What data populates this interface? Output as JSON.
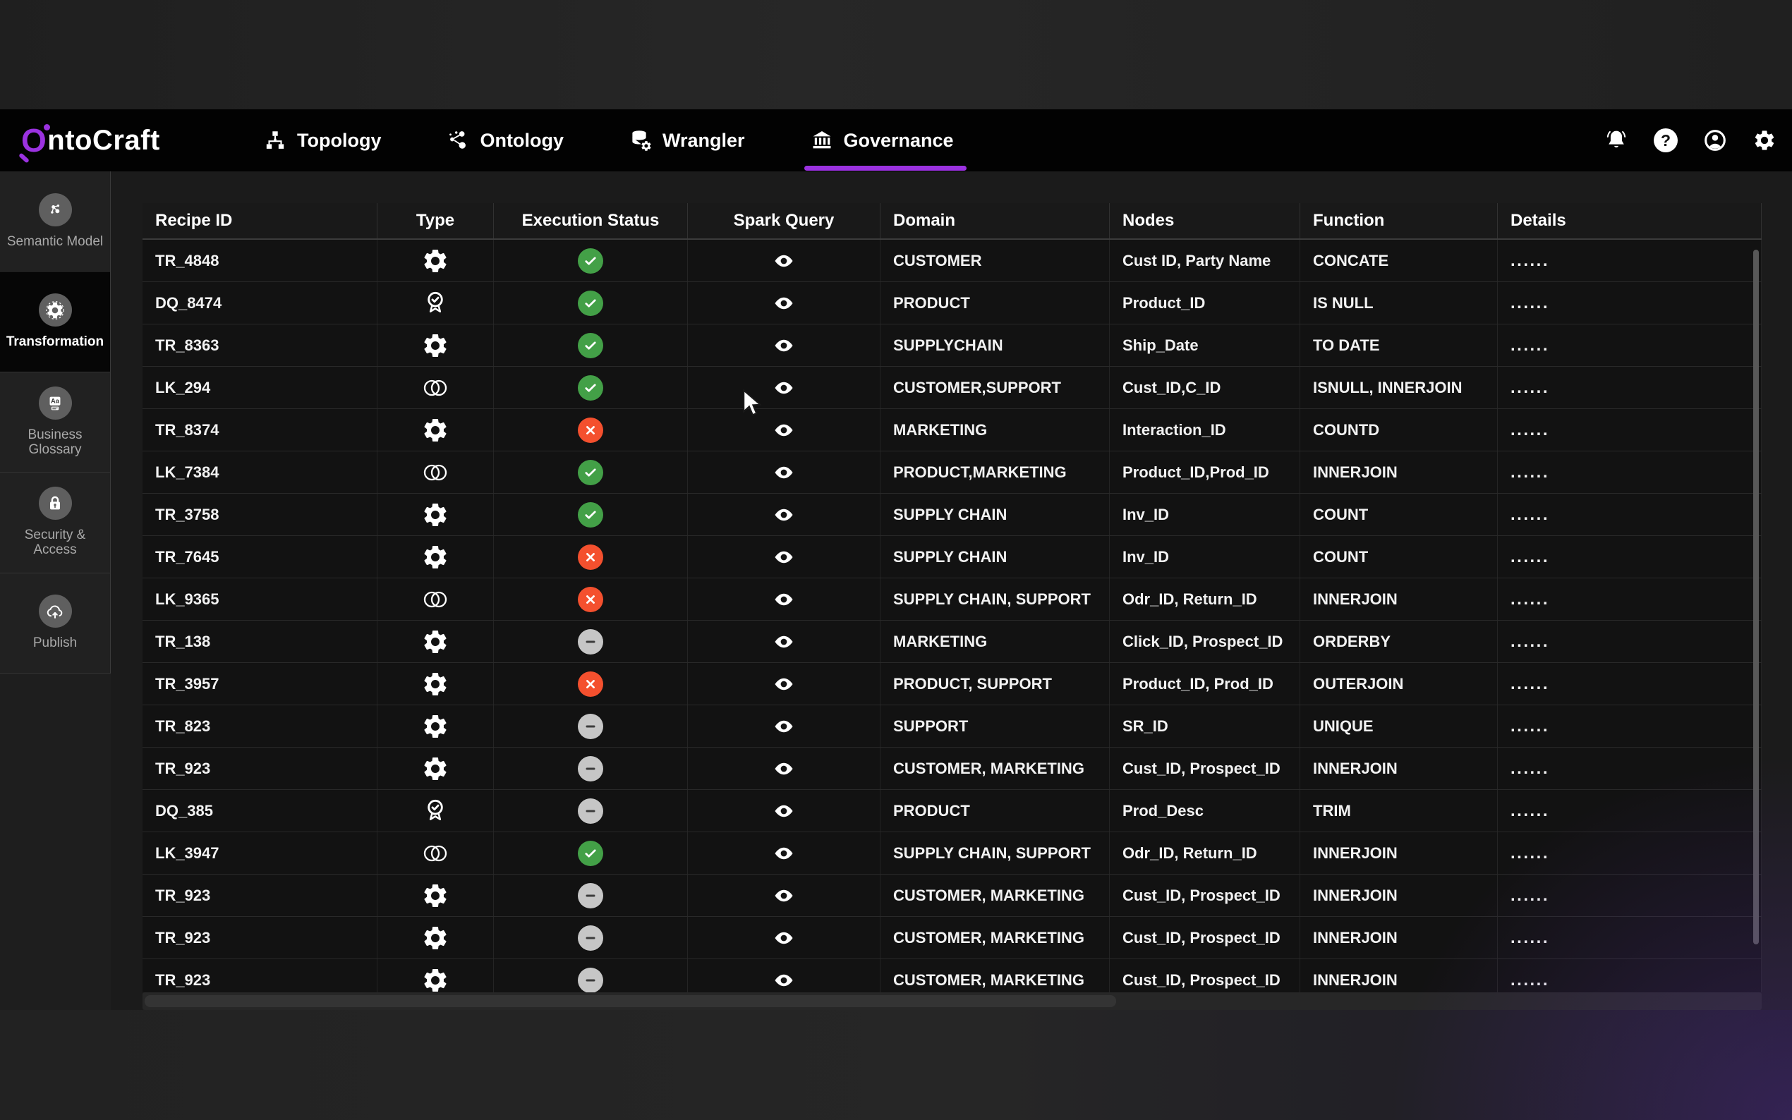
{
  "colors": {
    "accent_purple": "#9b32e0",
    "success_green": "#43a047",
    "error_red": "#f4502e",
    "pending_gray": "#c6c6c6"
  },
  "brand": {
    "prefix": "O",
    "rest": "ntoCraft"
  },
  "nav": {
    "tabs": [
      {
        "label": "Topology",
        "icon": "topology-icon",
        "active": false
      },
      {
        "label": "Ontology",
        "icon": "ontology-icon",
        "active": false
      },
      {
        "label": "Wrangler",
        "icon": "wrangler-icon",
        "active": false
      },
      {
        "label": "Governance",
        "icon": "governance-icon",
        "active": true
      }
    ],
    "actions": [
      {
        "name": "notifications",
        "icon": "bell-icon"
      },
      {
        "name": "help",
        "icon": "help-icon"
      },
      {
        "name": "account",
        "icon": "user-icon"
      },
      {
        "name": "settings",
        "icon": "gear-icon"
      }
    ]
  },
  "sidebar": {
    "items": [
      {
        "label": "Semantic Model",
        "icon": "semantic-model-icon",
        "active": false
      },
      {
        "label": "Transformation",
        "icon": "transformation-icon",
        "active": true
      },
      {
        "label": "Business Glossary",
        "icon": "business-glossary-icon",
        "active": false
      },
      {
        "label": "Security & Access",
        "icon": "security-access-icon",
        "active": false
      },
      {
        "label": "Publish",
        "icon": "publish-icon",
        "active": false
      }
    ]
  },
  "table": {
    "columns": [
      "Recipe ID",
      "Type",
      "Execution Status",
      "Spark Query",
      "Domain",
      "Nodes",
      "Function",
      "Details"
    ],
    "spark_query_icon": "eye-icon",
    "rows": [
      {
        "recipe_id": "TR_4848",
        "type": "transformation",
        "status": "success",
        "domain": "CUSTOMER",
        "nodes": "Cust ID, Party Name",
        "function": "CONCATE",
        "details": "......"
      },
      {
        "recipe_id": "DQ_8474",
        "type": "data-quality",
        "status": "success",
        "domain": "PRODUCT",
        "nodes": "Product_ID",
        "function": "IS NULL",
        "details": "......"
      },
      {
        "recipe_id": "TR_8363",
        "type": "transformation",
        "status": "success",
        "domain": "SUPPLYCHAIN",
        "nodes": "Ship_Date",
        "function": "TO DATE",
        "details": "......"
      },
      {
        "recipe_id": "LK_294",
        "type": "link",
        "status": "success",
        "domain": "CUSTOMER,SUPPORT",
        "nodes": "Cust_ID,C_ID",
        "function": "ISNULL, INNERJOIN",
        "details": "......"
      },
      {
        "recipe_id": "TR_8374",
        "type": "transformation",
        "status": "failed",
        "domain": "MARKETING",
        "nodes": "Interaction_ID",
        "function": "COUNTD",
        "details": "......"
      },
      {
        "recipe_id": "LK_7384",
        "type": "link",
        "status": "success",
        "domain": "PRODUCT,MARKETING",
        "nodes": "Product_ID,Prod_ID",
        "function": "INNERJOIN",
        "details": "......"
      },
      {
        "recipe_id": "TR_3758",
        "type": "transformation",
        "status": "success",
        "domain": "SUPPLY CHAIN",
        "nodes": "Inv_ID",
        "function": "COUNT",
        "details": "......"
      },
      {
        "recipe_id": "TR_7645",
        "type": "transformation",
        "status": "failed",
        "domain": "SUPPLY CHAIN",
        "nodes": "Inv_ID",
        "function": "COUNT",
        "details": "......"
      },
      {
        "recipe_id": "LK_9365",
        "type": "link",
        "status": "failed",
        "domain": "SUPPLY CHAIN, SUPPORT",
        "nodes": "Odr_ID, Return_ID",
        "function": "INNERJOIN",
        "details": "......"
      },
      {
        "recipe_id": "TR_138",
        "type": "transformation",
        "status": "pending",
        "domain": "MARKETING",
        "nodes": "Click_ID, Prospect_ID",
        "function": "ORDERBY",
        "details": "......"
      },
      {
        "recipe_id": "TR_3957",
        "type": "transformation",
        "status": "failed",
        "domain": "PRODUCT, SUPPORT",
        "nodes": "Product_ID, Prod_ID",
        "function": "OUTERJOIN",
        "details": "......"
      },
      {
        "recipe_id": "TR_823",
        "type": "transformation",
        "status": "pending",
        "domain": "SUPPORT",
        "nodes": "SR_ID",
        "function": "UNIQUE",
        "details": "......"
      },
      {
        "recipe_id": "TR_923",
        "type": "transformation",
        "status": "pending",
        "domain": "CUSTOMER, MARKETING",
        "nodes": "Cust_ID, Prospect_ID",
        "function": "INNERJOIN",
        "details": "......"
      },
      {
        "recipe_id": "DQ_385",
        "type": "data-quality",
        "status": "pending",
        "domain": "PRODUCT",
        "nodes": "Prod_Desc",
        "function": "TRIM",
        "details": "......"
      },
      {
        "recipe_id": "LK_3947",
        "type": "link",
        "status": "success",
        "domain": "SUPPLY CHAIN, SUPPORT",
        "nodes": "Odr_ID, Return_ID",
        "function": "INNERJOIN",
        "details": "......"
      },
      {
        "recipe_id": "TR_923",
        "type": "transformation",
        "status": "pending",
        "domain": "CUSTOMER, MARKETING",
        "nodes": "Cust_ID, Prospect_ID",
        "function": "INNERJOIN",
        "details": "......"
      },
      {
        "recipe_id": "TR_923",
        "type": "transformation",
        "status": "pending",
        "domain": "CUSTOMER, MARKETING",
        "nodes": "Cust_ID, Prospect_ID",
        "function": "INNERJOIN",
        "details": "......"
      },
      {
        "recipe_id": "TR_923",
        "type": "transformation",
        "status": "pending",
        "domain": "CUSTOMER, MARKETING",
        "nodes": "Cust_ID, Prospect_ID",
        "function": "INNERJOIN",
        "details": "......"
      }
    ]
  }
}
